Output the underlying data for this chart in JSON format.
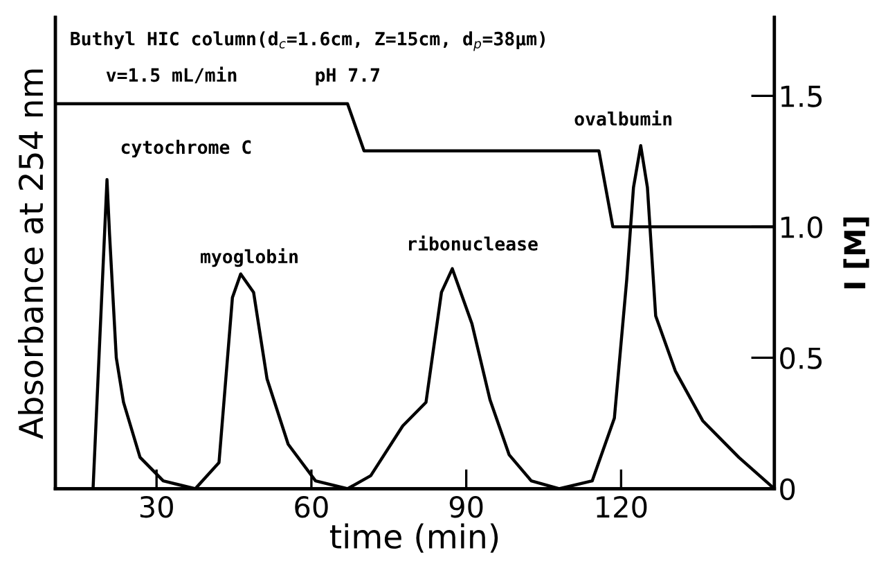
{
  "chart_data": {
    "type": "line",
    "xlabel": "time (min)",
    "ylabel": "Absorbance at 254 nm",
    "y2label": "I [M]",
    "xlim": [
      10.4,
      149.7
    ],
    "xticks": [
      30,
      60,
      90,
      120
    ],
    "y2lim": [
      0,
      1.8
    ],
    "y2ticks": [
      0,
      0.5,
      {
        "value": 1.0,
        "label": "1.0"
      },
      1.5
    ],
    "grid": false,
    "legend": false,
    "marker": "none",
    "line_style": "solid",
    "series": [
      {
        "color": "#000000",
        "axis": "y2",
        "x": [
          17.7,
          20.4,
          20.9,
          22.2,
          23.6,
          26.8,
          31.3,
          37.5,
          42.1,
          44.7,
          46.3,
          48.8,
          51.4,
          55.5,
          60.8,
          67,
          71.5,
          77.7,
          82.2,
          85.2,
          87.3,
          91.1,
          94.6,
          98.3,
          102.6,
          108,
          114.4,
          118.7,
          121.1,
          122.4,
          123.8,
          125.1,
          126.7,
          130.5,
          135.8,
          142.8,
          149.7
        ],
        "values": [
          0,
          1.18,
          0.97,
          0.5,
          0.33,
          0.12,
          0.03,
          0,
          0.1,
          0.73,
          0.82,
          0.75,
          0.42,
          0.17,
          0.03,
          0,
          0.05,
          0.24,
          0.33,
          0.75,
          0.84,
          0.63,
          0.34,
          0.13,
          0.03,
          0,
          0.03,
          0.27,
          0.8,
          1.15,
          1.31,
          1.15,
          0.66,
          0.45,
          0.26,
          0.12,
          0
        ]
      },
      {
        "color": "#000000",
        "axis": "y2",
        "x": [
          10.4,
          67,
          70.2,
          115.7,
          118.4,
          149.7
        ],
        "values": [
          1.47,
          1.47,
          1.29,
          1.29,
          1.0,
          1.0
        ]
      }
    ],
    "annotations": [
      "Buthyl HIC column(d$_{c}$=1.6cm, Z=15cm, d$_{p}$=38μm)",
      "v=1.5 mL/min       pH 7.7",
      "cytochrome C",
      "myoglobin",
      "ribonuclease",
      "ovalbumin"
    ]
  }
}
